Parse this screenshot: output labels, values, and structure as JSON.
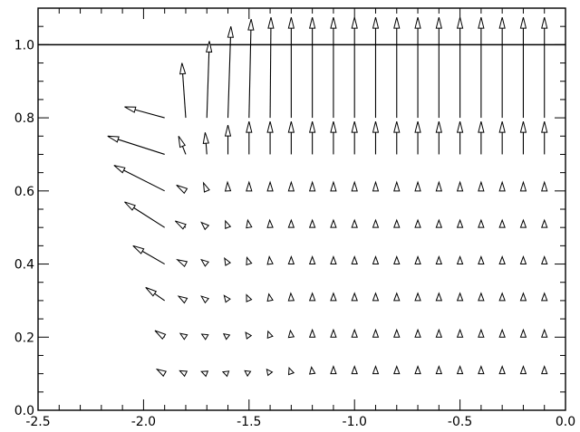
{
  "chart_data": {
    "type": "quiver",
    "title": "",
    "xlabel": "",
    "ylabel": "",
    "xlim": [
      -2.5,
      0.0
    ],
    "ylim": [
      0.0,
      1.1
    ],
    "x_ticks": [
      -2.5,
      -2.0,
      -1.5,
      -1.0,
      -0.5,
      0.0
    ],
    "y_ticks": [
      0.0,
      0.2,
      0.4,
      0.6,
      0.8,
      1.0
    ],
    "x_tick_labels": [
      "-2.5",
      "-2.0",
      "-1.5",
      "-1.0",
      "-0.5",
      "0.0"
    ],
    "y_tick_labels": [
      "0.0",
      "0.2",
      "0.4",
      "0.6",
      "0.8",
      "1.0"
    ],
    "reference_lines": [
      {
        "orientation": "horizontal",
        "y": 1.0
      }
    ],
    "grid": false,
    "legend": "none",
    "vectors": [
      {
        "x": -1.9,
        "y": 0.1,
        "u": -0.036,
        "v": 0.012
      },
      {
        "x": -1.8,
        "y": 0.1,
        "u": -0.028,
        "v": 0.008
      },
      {
        "x": -1.7,
        "y": 0.1,
        "u": -0.026,
        "v": 0.006
      },
      {
        "x": -1.6,
        "y": 0.1,
        "u": -0.024,
        "v": 0.005
      },
      {
        "x": -1.5,
        "y": 0.1,
        "u": -0.02,
        "v": 0.008
      },
      {
        "x": -1.4,
        "y": 0.1,
        "u": -0.016,
        "v": 0.012
      },
      {
        "x": -1.3,
        "y": 0.1,
        "u": -0.01,
        "v": 0.016
      },
      {
        "x": -1.2,
        "y": 0.1,
        "u": -0.004,
        "v": 0.018
      },
      {
        "x": -1.1,
        "y": 0.1,
        "u": 0.0,
        "v": 0.02
      },
      {
        "x": -1.0,
        "y": 0.1,
        "u": 0.0,
        "v": 0.02
      },
      {
        "x": -0.9,
        "y": 0.1,
        "u": 0.0,
        "v": 0.02
      },
      {
        "x": -0.8,
        "y": 0.1,
        "u": 0.0,
        "v": 0.02
      },
      {
        "x": -0.7,
        "y": 0.1,
        "u": 0.0,
        "v": 0.02
      },
      {
        "x": -0.6,
        "y": 0.1,
        "u": 0.0,
        "v": 0.02
      },
      {
        "x": -0.5,
        "y": 0.1,
        "u": 0.0,
        "v": 0.02
      },
      {
        "x": -0.4,
        "y": 0.1,
        "u": 0.0,
        "v": 0.02
      },
      {
        "x": -0.3,
        "y": 0.1,
        "u": 0.0,
        "v": 0.02
      },
      {
        "x": -0.2,
        "y": 0.1,
        "u": 0.0,
        "v": 0.02
      },
      {
        "x": -0.1,
        "y": 0.1,
        "u": 0.0,
        "v": 0.02
      },
      {
        "x": -1.9,
        "y": 0.2,
        "u": -0.046,
        "v": 0.018
      },
      {
        "x": -1.8,
        "y": 0.2,
        "u": -0.026,
        "v": 0.01
      },
      {
        "x": -1.7,
        "y": 0.2,
        "u": -0.024,
        "v": 0.008
      },
      {
        "x": -1.6,
        "y": 0.2,
        "u": -0.02,
        "v": 0.009
      },
      {
        "x": -1.5,
        "y": 0.2,
        "u": -0.016,
        "v": 0.013
      },
      {
        "x": -1.4,
        "y": 0.2,
        "u": -0.01,
        "v": 0.016
      },
      {
        "x": -1.3,
        "y": 0.2,
        "u": -0.004,
        "v": 0.018
      },
      {
        "x": -1.2,
        "y": 0.2,
        "u": 0.0,
        "v": 0.02
      },
      {
        "x": -1.1,
        "y": 0.2,
        "u": 0.0,
        "v": 0.02
      },
      {
        "x": -1.0,
        "y": 0.2,
        "u": 0.0,
        "v": 0.02
      },
      {
        "x": -0.9,
        "y": 0.2,
        "u": 0.0,
        "v": 0.02
      },
      {
        "x": -0.8,
        "y": 0.2,
        "u": 0.0,
        "v": 0.02
      },
      {
        "x": -0.7,
        "y": 0.2,
        "u": 0.0,
        "v": 0.02
      },
      {
        "x": -0.6,
        "y": 0.2,
        "u": 0.0,
        "v": 0.02
      },
      {
        "x": -0.5,
        "y": 0.2,
        "u": 0.0,
        "v": 0.02
      },
      {
        "x": -0.4,
        "y": 0.2,
        "u": 0.0,
        "v": 0.02
      },
      {
        "x": -0.3,
        "y": 0.2,
        "u": 0.0,
        "v": 0.02
      },
      {
        "x": -0.2,
        "y": 0.2,
        "u": 0.0,
        "v": 0.02
      },
      {
        "x": -0.1,
        "y": 0.2,
        "u": 0.0,
        "v": 0.02
      },
      {
        "x": -1.9,
        "y": 0.3,
        "u": -0.09,
        "v": 0.036
      },
      {
        "x": -1.8,
        "y": 0.3,
        "u": -0.034,
        "v": 0.012
      },
      {
        "x": -1.7,
        "y": 0.3,
        "u": -0.026,
        "v": 0.012
      },
      {
        "x": -1.6,
        "y": 0.3,
        "u": -0.018,
        "v": 0.014
      },
      {
        "x": -1.5,
        "y": 0.3,
        "u": -0.012,
        "v": 0.016
      },
      {
        "x": -1.4,
        "y": 0.3,
        "u": -0.006,
        "v": 0.018
      },
      {
        "x": -1.3,
        "y": 0.3,
        "u": -0.002,
        "v": 0.02
      },
      {
        "x": -1.2,
        "y": 0.3,
        "u": 0.0,
        "v": 0.02
      },
      {
        "x": -1.1,
        "y": 0.3,
        "u": 0.0,
        "v": 0.02
      },
      {
        "x": -1.0,
        "y": 0.3,
        "u": 0.0,
        "v": 0.02
      },
      {
        "x": -0.9,
        "y": 0.3,
        "u": 0.0,
        "v": 0.02
      },
      {
        "x": -0.8,
        "y": 0.3,
        "u": 0.0,
        "v": 0.02
      },
      {
        "x": -0.7,
        "y": 0.3,
        "u": 0.0,
        "v": 0.02
      },
      {
        "x": -0.6,
        "y": 0.3,
        "u": 0.0,
        "v": 0.02
      },
      {
        "x": -0.5,
        "y": 0.3,
        "u": 0.0,
        "v": 0.02
      },
      {
        "x": -0.4,
        "y": 0.3,
        "u": 0.0,
        "v": 0.02
      },
      {
        "x": -0.3,
        "y": 0.3,
        "u": 0.0,
        "v": 0.02
      },
      {
        "x": -0.2,
        "y": 0.3,
        "u": 0.0,
        "v": 0.02
      },
      {
        "x": -0.1,
        "y": 0.3,
        "u": 0.0,
        "v": 0.02
      },
      {
        "x": -1.9,
        "y": 0.4,
        "u": -0.15,
        "v": 0.05
      },
      {
        "x": -1.8,
        "y": 0.4,
        "u": -0.04,
        "v": 0.012
      },
      {
        "x": -1.7,
        "y": 0.4,
        "u": -0.026,
        "v": 0.012
      },
      {
        "x": -1.6,
        "y": 0.4,
        "u": -0.016,
        "v": 0.016
      },
      {
        "x": -1.5,
        "y": 0.4,
        "u": -0.01,
        "v": 0.018
      },
      {
        "x": -1.4,
        "y": 0.4,
        "u": -0.004,
        "v": 0.02
      },
      {
        "x": -1.3,
        "y": 0.4,
        "u": 0.0,
        "v": 0.02
      },
      {
        "x": -1.2,
        "y": 0.4,
        "u": 0.0,
        "v": 0.02
      },
      {
        "x": -1.1,
        "y": 0.4,
        "u": 0.0,
        "v": 0.02
      },
      {
        "x": -1.0,
        "y": 0.4,
        "u": 0.0,
        "v": 0.02
      },
      {
        "x": -0.9,
        "y": 0.4,
        "u": 0.0,
        "v": 0.02
      },
      {
        "x": -0.8,
        "y": 0.4,
        "u": 0.0,
        "v": 0.02
      },
      {
        "x": -0.7,
        "y": 0.4,
        "u": 0.0,
        "v": 0.02
      },
      {
        "x": -0.6,
        "y": 0.4,
        "u": 0.0,
        "v": 0.02
      },
      {
        "x": -0.5,
        "y": 0.4,
        "u": 0.0,
        "v": 0.02
      },
      {
        "x": -0.4,
        "y": 0.4,
        "u": 0.0,
        "v": 0.02
      },
      {
        "x": -0.3,
        "y": 0.4,
        "u": 0.0,
        "v": 0.02
      },
      {
        "x": -0.2,
        "y": 0.4,
        "u": 0.0,
        "v": 0.02
      },
      {
        "x": -0.1,
        "y": 0.4,
        "u": 0.0,
        "v": 0.02
      },
      {
        "x": -1.9,
        "y": 0.5,
        "u": -0.19,
        "v": 0.07
      },
      {
        "x": -1.8,
        "y": 0.5,
        "u": -0.05,
        "v": 0.018
      },
      {
        "x": -1.7,
        "y": 0.5,
        "u": -0.026,
        "v": 0.014
      },
      {
        "x": -1.6,
        "y": 0.5,
        "u": -0.012,
        "v": 0.018
      },
      {
        "x": -1.5,
        "y": 0.5,
        "u": -0.006,
        "v": 0.02
      },
      {
        "x": -1.4,
        "y": 0.5,
        "u": -0.002,
        "v": 0.02
      },
      {
        "x": -1.3,
        "y": 0.5,
        "u": 0.0,
        "v": 0.02
      },
      {
        "x": -1.2,
        "y": 0.5,
        "u": 0.0,
        "v": 0.02
      },
      {
        "x": -1.1,
        "y": 0.5,
        "u": 0.0,
        "v": 0.02
      },
      {
        "x": -1.0,
        "y": 0.5,
        "u": 0.0,
        "v": 0.02
      },
      {
        "x": -0.9,
        "y": 0.5,
        "u": 0.0,
        "v": 0.02
      },
      {
        "x": -0.8,
        "y": 0.5,
        "u": 0.0,
        "v": 0.02
      },
      {
        "x": -0.7,
        "y": 0.5,
        "u": 0.0,
        "v": 0.02
      },
      {
        "x": -0.6,
        "y": 0.5,
        "u": 0.0,
        "v": 0.02
      },
      {
        "x": -0.5,
        "y": 0.5,
        "u": 0.0,
        "v": 0.02
      },
      {
        "x": -0.4,
        "y": 0.5,
        "u": 0.0,
        "v": 0.02
      },
      {
        "x": -0.3,
        "y": 0.5,
        "u": 0.0,
        "v": 0.02
      },
      {
        "x": -0.2,
        "y": 0.5,
        "u": 0.0,
        "v": 0.02
      },
      {
        "x": -0.1,
        "y": 0.5,
        "u": 0.0,
        "v": 0.02
      },
      {
        "x": -1.9,
        "y": 0.6,
        "u": -0.24,
        "v": 0.07
      },
      {
        "x": -1.8,
        "y": 0.6,
        "u": -0.044,
        "v": 0.016
      },
      {
        "x": -1.7,
        "y": 0.6,
        "u": -0.016,
        "v": 0.022
      },
      {
        "x": -1.6,
        "y": 0.6,
        "u": -0.002,
        "v": 0.024
      },
      {
        "x": -1.5,
        "y": 0.6,
        "u": 0.0,
        "v": 0.024
      },
      {
        "x": -1.4,
        "y": 0.6,
        "u": 0.0,
        "v": 0.024
      },
      {
        "x": -1.3,
        "y": 0.6,
        "u": 0.0,
        "v": 0.024
      },
      {
        "x": -1.2,
        "y": 0.6,
        "u": 0.0,
        "v": 0.024
      },
      {
        "x": -1.1,
        "y": 0.6,
        "u": 0.0,
        "v": 0.024
      },
      {
        "x": -1.0,
        "y": 0.6,
        "u": 0.0,
        "v": 0.024
      },
      {
        "x": -0.9,
        "y": 0.6,
        "u": 0.0,
        "v": 0.024
      },
      {
        "x": -0.8,
        "y": 0.6,
        "u": 0.0,
        "v": 0.024
      },
      {
        "x": -0.7,
        "y": 0.6,
        "u": 0.0,
        "v": 0.024
      },
      {
        "x": -0.6,
        "y": 0.6,
        "u": 0.0,
        "v": 0.024
      },
      {
        "x": -0.5,
        "y": 0.6,
        "u": 0.0,
        "v": 0.024
      },
      {
        "x": -0.4,
        "y": 0.6,
        "u": 0.0,
        "v": 0.024
      },
      {
        "x": -0.3,
        "y": 0.6,
        "u": 0.0,
        "v": 0.024
      },
      {
        "x": -0.2,
        "y": 0.6,
        "u": 0.0,
        "v": 0.024
      },
      {
        "x": -0.1,
        "y": 0.6,
        "u": 0.0,
        "v": 0.024
      },
      {
        "x": -1.9,
        "y": 0.7,
        "u": -0.27,
        "v": 0.05
      },
      {
        "x": -1.8,
        "y": 0.7,
        "u": -0.034,
        "v": 0.05
      },
      {
        "x": -1.7,
        "y": 0.7,
        "u": -0.008,
        "v": 0.06
      },
      {
        "x": -1.6,
        "y": 0.7,
        "u": 0.0,
        "v": 0.08
      },
      {
        "x": -1.5,
        "y": 0.7,
        "u": 0.0,
        "v": 0.09
      },
      {
        "x": -1.4,
        "y": 0.7,
        "u": 0.0,
        "v": 0.09
      },
      {
        "x": -1.3,
        "y": 0.7,
        "u": 0.0,
        "v": 0.09
      },
      {
        "x": -1.2,
        "y": 0.7,
        "u": 0.0,
        "v": 0.09
      },
      {
        "x": -1.1,
        "y": 0.7,
        "u": 0.0,
        "v": 0.09
      },
      {
        "x": -1.0,
        "y": 0.7,
        "u": 0.0,
        "v": 0.09
      },
      {
        "x": -0.9,
        "y": 0.7,
        "u": 0.0,
        "v": 0.09
      },
      {
        "x": -0.8,
        "y": 0.7,
        "u": 0.0,
        "v": 0.09
      },
      {
        "x": -0.7,
        "y": 0.7,
        "u": 0.0,
        "v": 0.09
      },
      {
        "x": -0.6,
        "y": 0.7,
        "u": 0.0,
        "v": 0.09
      },
      {
        "x": -0.5,
        "y": 0.7,
        "u": 0.0,
        "v": 0.09
      },
      {
        "x": -0.4,
        "y": 0.7,
        "u": 0.0,
        "v": 0.09
      },
      {
        "x": -0.3,
        "y": 0.7,
        "u": 0.0,
        "v": 0.09
      },
      {
        "x": -0.2,
        "y": 0.7,
        "u": 0.0,
        "v": 0.09
      },
      {
        "x": -0.1,
        "y": 0.7,
        "u": 0.0,
        "v": 0.09
      },
      {
        "x": -1.9,
        "y": 0.8,
        "u": -0.19,
        "v": 0.03
      },
      {
        "x": -1.8,
        "y": 0.8,
        "u": -0.018,
        "v": 0.15
      },
      {
        "x": -1.7,
        "y": 0.8,
        "u": 0.012,
        "v": 0.21
      },
      {
        "x": -1.6,
        "y": 0.8,
        "u": 0.014,
        "v": 0.25
      },
      {
        "x": -1.5,
        "y": 0.8,
        "u": 0.01,
        "v": 0.27
      },
      {
        "x": -1.4,
        "y": 0.8,
        "u": 0.004,
        "v": 0.275
      },
      {
        "x": -1.3,
        "y": 0.8,
        "u": 0.0,
        "v": 0.275
      },
      {
        "x": -1.2,
        "y": 0.8,
        "u": 0.0,
        "v": 0.275
      },
      {
        "x": -1.1,
        "y": 0.8,
        "u": 0.0,
        "v": 0.275
      },
      {
        "x": -1.0,
        "y": 0.8,
        "u": 0.0,
        "v": 0.275
      },
      {
        "x": -0.9,
        "y": 0.8,
        "u": 0.0,
        "v": 0.275
      },
      {
        "x": -0.8,
        "y": 0.8,
        "u": 0.0,
        "v": 0.275
      },
      {
        "x": -0.7,
        "y": 0.8,
        "u": 0.0,
        "v": 0.275
      },
      {
        "x": -0.6,
        "y": 0.8,
        "u": 0.0,
        "v": 0.275
      },
      {
        "x": -0.5,
        "y": 0.8,
        "u": 0.0,
        "v": 0.275
      },
      {
        "x": -0.4,
        "y": 0.8,
        "u": 0.0,
        "v": 0.275
      },
      {
        "x": -0.3,
        "y": 0.8,
        "u": 0.0,
        "v": 0.275
      },
      {
        "x": -0.2,
        "y": 0.8,
        "u": 0.0,
        "v": 0.275
      },
      {
        "x": -0.1,
        "y": 0.8,
        "u": 0.0,
        "v": 0.275
      }
    ]
  }
}
